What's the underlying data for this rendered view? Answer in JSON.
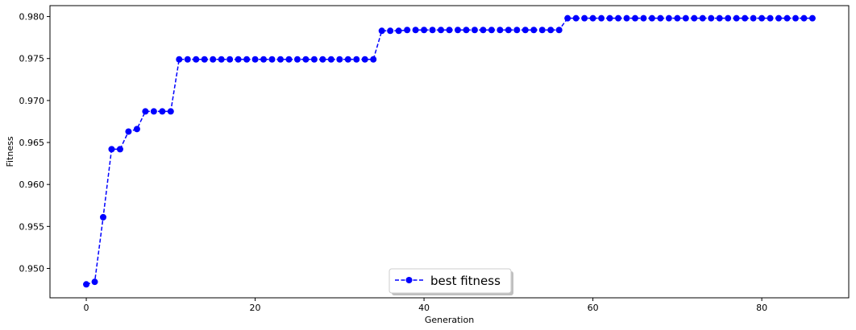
{
  "chart_data": {
    "type": "line",
    "xlabel": "Generation",
    "ylabel": "Fitness",
    "xlim": [
      -4.3,
      90.3
    ],
    "ylim": [
      0.9465,
      0.9813
    ],
    "xticks": [
      0,
      20,
      40,
      60,
      80
    ],
    "yticks": [
      0.95,
      0.955,
      0.96,
      0.965,
      0.97,
      0.975,
      0.98
    ],
    "ytick_labels": [
      "0.950",
      "0.955",
      "0.960",
      "0.965",
      "0.970",
      "0.975",
      "0.980"
    ],
    "grid": false,
    "legend_position": "lower center",
    "series": [
      {
        "name": "best fitness",
        "color": "#0000ff",
        "linestyle": "dashed",
        "marker": "circle",
        "x": [
          0,
          1,
          2,
          3,
          4,
          5,
          6,
          7,
          8,
          9,
          10,
          11,
          12,
          13,
          14,
          15,
          16,
          17,
          18,
          19,
          20,
          21,
          22,
          23,
          24,
          25,
          26,
          27,
          28,
          29,
          30,
          31,
          32,
          33,
          34,
          35,
          36,
          37,
          38,
          39,
          40,
          41,
          42,
          43,
          44,
          45,
          46,
          47,
          48,
          49,
          50,
          51,
          52,
          53,
          54,
          55,
          56,
          57,
          58,
          59,
          60,
          61,
          62,
          63,
          64,
          65,
          66,
          67,
          68,
          69,
          70,
          71,
          72,
          73,
          74,
          75,
          76,
          77,
          78,
          79,
          80,
          81,
          82,
          83,
          84,
          85,
          86
        ],
        "values": [
          0.9481,
          0.9484,
          0.9561,
          0.9642,
          0.9642,
          0.9663,
          0.9666,
          0.9687,
          0.9687,
          0.9687,
          0.9687,
          0.9749,
          0.9749,
          0.9749,
          0.9749,
          0.9749,
          0.9749,
          0.9749,
          0.9749,
          0.9749,
          0.9749,
          0.9749,
          0.9749,
          0.9749,
          0.9749,
          0.9749,
          0.9749,
          0.9749,
          0.9749,
          0.9749,
          0.9749,
          0.9749,
          0.9749,
          0.9749,
          0.9749,
          0.9783,
          0.9783,
          0.9783,
          0.9784,
          0.9784,
          0.9784,
          0.9784,
          0.9784,
          0.9784,
          0.9784,
          0.9784,
          0.9784,
          0.9784,
          0.9784,
          0.9784,
          0.9784,
          0.9784,
          0.9784,
          0.9784,
          0.9784,
          0.9784,
          0.9784,
          0.9798,
          0.9798,
          0.9798,
          0.9798,
          0.9798,
          0.9798,
          0.9798,
          0.9798,
          0.9798,
          0.9798,
          0.9798,
          0.9798,
          0.9798,
          0.9798,
          0.9798,
          0.9798,
          0.9798,
          0.9798,
          0.9798,
          0.9798,
          0.9798,
          0.9798,
          0.9798,
          0.9798,
          0.9798,
          0.9798,
          0.9798,
          0.9798,
          0.9798,
          0.9798
        ]
      }
    ]
  }
}
